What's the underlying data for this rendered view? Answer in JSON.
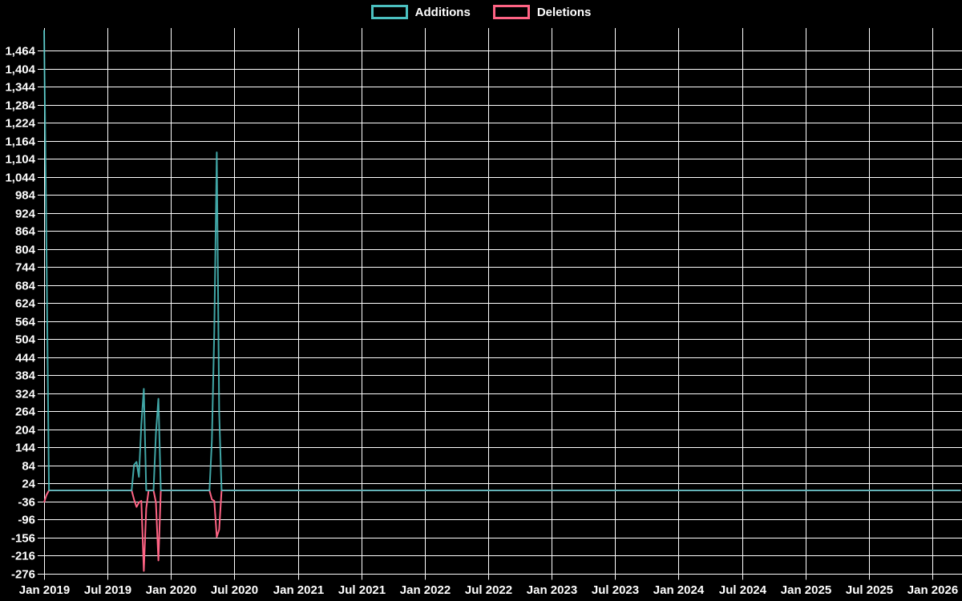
{
  "app": {
    "background_color": "#000000",
    "text_color": "#ffffff",
    "grid_color": "#ffffff"
  },
  "legend": {
    "items": [
      {
        "label": "Additions",
        "color": "#4bc0c0"
      },
      {
        "label": "Deletions",
        "color": "#ff6384"
      }
    ]
  },
  "chart_data": {
    "type": "line",
    "title": "",
    "xlabel": "",
    "ylabel": "",
    "x_tick_labels": [
      "Jan 2019",
      "Jul 2019",
      "Jan 2020",
      "Jul 2020",
      "Jan 2021",
      "Jul 2021",
      "Jan 2022",
      "Jul 2022",
      "Jan 2023",
      "Jul 2023",
      "Jan 2024",
      "Jul 2024",
      "Jan 2025",
      "Jul 2025",
      "Jan 2026"
    ],
    "y_tick_values": [
      1464,
      1404,
      1344,
      1284,
      1224,
      1164,
      1104,
      1044,
      984,
      924,
      864,
      804,
      744,
      684,
      624,
      564,
      504,
      444,
      384,
      324,
      264,
      204,
      144,
      84,
      24,
      -36,
      -96,
      -156,
      -216,
      -276
    ],
    "y_tick_step": 60,
    "ylim": [
      -276,
      1538
    ],
    "grid": true,
    "legend_position": "top",
    "x_unit": "weeks since Jan 2019",
    "total_weeks": 378,
    "baseline_value": 0,
    "series": [
      {
        "name": "Additions",
        "color": "#4bc0c0",
        "spikes": [
          [
            0,
            1532
          ],
          [
            1,
            800
          ],
          [
            37,
            85
          ],
          [
            38,
            95
          ],
          [
            39,
            45
          ],
          [
            40,
            220
          ],
          [
            41,
            338
          ],
          [
            46,
            190
          ],
          [
            47,
            305
          ],
          [
            69,
            165
          ],
          [
            70,
            530
          ],
          [
            71,
            1125
          ],
          [
            72,
            260
          ]
        ]
      },
      {
        "name": "Deletions",
        "color": "#ff6384",
        "spikes": [
          [
            0,
            -40
          ],
          [
            1,
            -15
          ],
          [
            37,
            -30
          ],
          [
            38,
            -55
          ],
          [
            39,
            -40
          ],
          [
            40,
            -35
          ],
          [
            41,
            -268
          ],
          [
            42,
            -60
          ],
          [
            46,
            -40
          ],
          [
            47,
            -233
          ],
          [
            69,
            -30
          ],
          [
            70,
            -35
          ],
          [
            71,
            -155
          ],
          [
            72,
            -130
          ]
        ]
      }
    ]
  }
}
